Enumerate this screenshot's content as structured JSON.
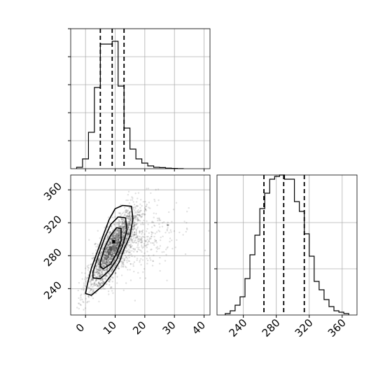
{
  "chart_data": [
    {
      "type": "histogram",
      "panel": "top-left",
      "variable": "x",
      "xlim": [
        -5,
        42
      ],
      "ylim": [
        0,
        1
      ],
      "xticks": [
        0,
        10,
        20,
        30,
        40
      ],
      "grid": true,
      "show_tick_labels": false,
      "bins": [
        {
          "x0": -3,
          "x1": -1,
          "value": 0.01
        },
        {
          "x0": -1,
          "x1": 1,
          "value": 0.07
        },
        {
          "x0": 1,
          "x1": 3,
          "value": 0.26
        },
        {
          "x0": 3,
          "x1": 5,
          "value": 0.58
        },
        {
          "x0": 5,
          "x1": 7,
          "value": 0.89
        },
        {
          "x0": 7,
          "x1": 9,
          "value": 0.89
        },
        {
          "x0": 9,
          "x1": 11,
          "value": 0.91
        },
        {
          "x0": 11,
          "x1": 13,
          "value": 0.59
        },
        {
          "x0": 13,
          "x1": 15,
          "value": 0.29
        },
        {
          "x0": 15,
          "x1": 17,
          "value": 0.14
        },
        {
          "x0": 17,
          "x1": 19,
          "value": 0.07
        },
        {
          "x0": 19,
          "x1": 21,
          "value": 0.04
        },
        {
          "x0": 21,
          "x1": 23,
          "value": 0.02
        },
        {
          "x0": 23,
          "x1": 25,
          "value": 0.01
        },
        {
          "x0": 25,
          "x1": 27,
          "value": 0.008
        },
        {
          "x0": 27,
          "x1": 29,
          "value": 0.004
        },
        {
          "x0": 29,
          "x1": 31,
          "value": 0.002
        },
        {
          "x0": 31,
          "x1": 33,
          "value": 0.001
        }
      ],
      "quantile_lines": [
        5,
        9,
        13
      ]
    },
    {
      "type": "scatter",
      "panel": "bottom-left",
      "x_variable": "x",
      "y_variable": "y",
      "xlim": [
        -5,
        42
      ],
      "ylim": [
        208,
        378
      ],
      "xticks": [
        0,
        10,
        20,
        30,
        40
      ],
      "yticks": [
        240,
        280,
        320,
        360
      ],
      "grid": true,
      "points_description": "dense gray point cloud, correlated",
      "density_peak": [
        9.5,
        289
      ],
      "density_cells": [
        {
          "x": 9.5,
          "y": 297,
          "level": 1.0
        },
        {
          "x": 8.5,
          "y": 289,
          "level": 0.6
        },
        {
          "x": 8.0,
          "y": 283,
          "level": 0.55
        },
        {
          "x": 7.5,
          "y": 279,
          "level": 0.45
        },
        {
          "x": 9.5,
          "y": 289,
          "level": 0.45
        },
        {
          "x": 9.0,
          "y": 305,
          "level": 0.3
        },
        {
          "x": 10.5,
          "y": 303,
          "level": 0.3
        },
        {
          "x": 6.0,
          "y": 273,
          "level": 0.25
        },
        {
          "x": 11.5,
          "y": 309,
          "level": 0.25
        }
      ],
      "contours": [
        [
          [
            0.5,
            243
          ],
          [
            2,
            265
          ],
          [
            4,
            285
          ],
          [
            6,
            305
          ],
          [
            8,
            324
          ],
          [
            10,
            337
          ],
          [
            12.5,
            341
          ],
          [
            15.5,
            340
          ],
          [
            16,
            325
          ],
          [
            15,
            304
          ],
          [
            13,
            288
          ],
          [
            11.5,
            273
          ],
          [
            9,
            258
          ],
          [
            6,
            244
          ],
          [
            2,
            232
          ],
          [
            0,
            234
          ],
          [
            0.5,
            243
          ]
        ],
        [
          [
            2.5,
            260
          ],
          [
            4.5,
            282
          ],
          [
            6.5,
            302
          ],
          [
            8.5,
            318
          ],
          [
            11,
            327
          ],
          [
            13.5,
            326
          ],
          [
            14,
            311
          ],
          [
            12.5,
            292
          ],
          [
            10.5,
            275
          ],
          [
            8,
            262
          ],
          [
            5,
            252
          ],
          [
            2.5,
            253
          ],
          [
            2.5,
            260
          ]
        ],
        [
          [
            5,
            272
          ],
          [
            6.5,
            290
          ],
          [
            8.5,
            305
          ],
          [
            10.5,
            314
          ],
          [
            12,
            313
          ],
          [
            12,
            298
          ],
          [
            10.5,
            283
          ],
          [
            8.5,
            270
          ],
          [
            6,
            264
          ],
          [
            5,
            267
          ],
          [
            5,
            272
          ]
        ]
      ]
    },
    {
      "type": "histogram",
      "panel": "bottom-right",
      "variable": "y",
      "xlim": [
        208,
        378
      ],
      "ylim": [
        0,
        1
      ],
      "xticks": [
        240,
        280,
        320,
        360
      ],
      "grid": true,
      "bins": [
        {
          "x0": 218,
          "x1": 224,
          "value": 0.01
        },
        {
          "x0": 224,
          "x1": 230,
          "value": 0.03
        },
        {
          "x0": 230,
          "x1": 236,
          "value": 0.07
        },
        {
          "x0": 236,
          "x1": 242,
          "value": 0.13
        },
        {
          "x0": 242,
          "x1": 248,
          "value": 0.26
        },
        {
          "x0": 248,
          "x1": 254,
          "value": 0.43
        },
        {
          "x0": 254,
          "x1": 260,
          "value": 0.57
        },
        {
          "x0": 260,
          "x1": 266,
          "value": 0.76
        },
        {
          "x0": 266,
          "x1": 272,
          "value": 0.87
        },
        {
          "x0": 272,
          "x1": 278,
          "value": 0.97
        },
        {
          "x0": 278,
          "x1": 284,
          "value": 0.99
        },
        {
          "x0": 284,
          "x1": 290,
          "value": 1.0
        },
        {
          "x0": 290,
          "x1": 296,
          "value": 0.97
        },
        {
          "x0": 296,
          "x1": 302,
          "value": 0.97
        },
        {
          "x0": 302,
          "x1": 308,
          "value": 0.81
        },
        {
          "x0": 308,
          "x1": 314,
          "value": 0.74
        },
        {
          "x0": 314,
          "x1": 320,
          "value": 0.58
        },
        {
          "x0": 320,
          "x1": 326,
          "value": 0.42
        },
        {
          "x0": 326,
          "x1": 332,
          "value": 0.24
        },
        {
          "x0": 332,
          "x1": 338,
          "value": 0.18
        },
        {
          "x0": 338,
          "x1": 344,
          "value": 0.11
        },
        {
          "x0": 344,
          "x1": 350,
          "value": 0.06
        },
        {
          "x0": 350,
          "x1": 356,
          "value": 0.03
        },
        {
          "x0": 356,
          "x1": 362,
          "value": 0.02
        },
        {
          "x0": 362,
          "x1": 368,
          "value": 0.01
        }
      ],
      "quantile_lines": [
        265,
        289,
        314
      ]
    }
  ]
}
